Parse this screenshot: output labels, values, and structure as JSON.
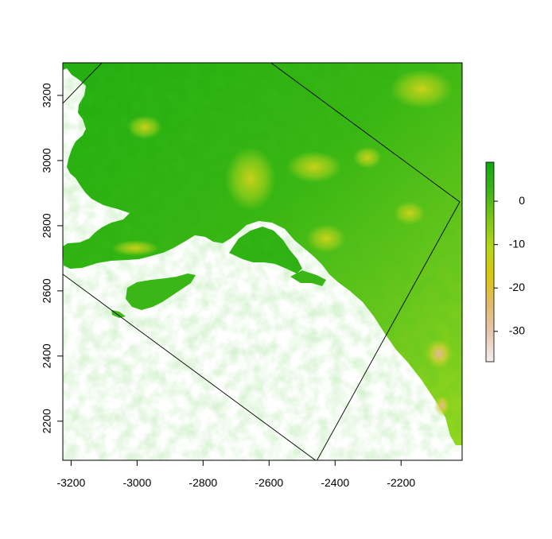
{
  "map": {
    "type": "raster",
    "x_ticks": [
      -3200,
      -3000,
      -2800,
      -2600,
      -2400,
      -2200
    ],
    "y_ticks": [
      2200,
      2400,
      2600,
      2800,
      3000,
      3200
    ],
    "xlim": [
      -3225,
      -2015
    ],
    "ylim": [
      2080,
      3300
    ],
    "colors": {
      "no_data": "#ffffff",
      "high": "#11a611",
      "mid": "#5cc51f",
      "low_mid": "#a6d617",
      "low": "#d8d718",
      "lower": "#e2bd5c",
      "lowest": "#f2eeee"
    }
  },
  "legend": {
    "ticks": [
      0,
      -10,
      -20,
      -30
    ],
    "range": [
      -37,
      9
    ],
    "gradient": [
      "#f2eeee",
      "#e7c7b0",
      "#e2ba6b",
      "#d9c70f",
      "#b6d619",
      "#7cc715",
      "#3cb31a",
      "#11a611"
    ]
  }
}
